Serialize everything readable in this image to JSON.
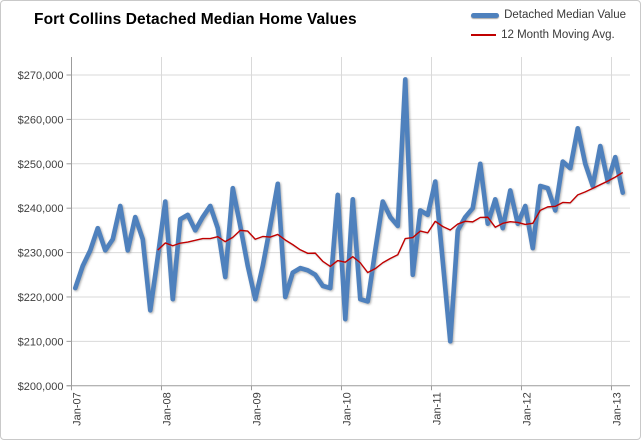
{
  "chart": {
    "title": "Fort Collins Detached Median Home Values",
    "legend": [
      {
        "label": "Detached Median Value",
        "color": "#4F81BD",
        "style": "thick-line"
      },
      {
        "label": "12 Month Moving Avg.",
        "color": "#C00000",
        "style": "thin-line"
      }
    ],
    "y_axis": {
      "ticks": [
        {
          "label": "$270,000",
          "value": 270000
        },
        {
          "label": "$260,000",
          "value": 260000
        },
        {
          "label": "$250,000",
          "value": 250000
        },
        {
          "label": "$240,000",
          "value": 240000
        },
        {
          "label": "$230,000",
          "value": 230000
        },
        {
          "label": "$220,000",
          "value": 220000
        },
        {
          "label": "$210,000",
          "value": 210000
        },
        {
          "label": "$200,000",
          "value": 200000
        }
      ]
    },
    "x_axis": {
      "tick_labels": [
        "Jan-07",
        "Jan-08",
        "Jan-09",
        "Jan-10",
        "Jan-11",
        "Jan-12",
        "Jan-13"
      ]
    },
    "colors": {
      "series_main": "#4F81BD",
      "series_avg": "#C00000",
      "gridline": "#D9D9D9",
      "axis": "#9C9C9C",
      "tick_text": "#3F3F3F"
    }
  },
  "chart_data": {
    "type": "line",
    "title": "Fort Collins Detached Median Home Values",
    "x_start": "Jan-2007",
    "x_interval": "month",
    "ylim": [
      200000,
      270000
    ],
    "grid": true,
    "legend_position": "top-right",
    "series": [
      {
        "name": "Detached Median Value",
        "color": "#4F81BD",
        "values": [
          222000,
          227000,
          230500,
          235500,
          230500,
          233000,
          240500,
          230500,
          238000,
          233000,
          217000,
          229000,
          241500,
          219500,
          237500,
          238500,
          235000,
          238000,
          240500,
          235500,
          224500,
          244500,
          236000,
          227000,
          219500,
          227000,
          236000,
          245500,
          220000,
          225500,
          226500,
          226000,
          225000,
          222500,
          222000,
          243000,
          215000,
          242000,
          219500,
          219000,
          230500,
          241500,
          238000,
          236000,
          269000,
          225000,
          239500,
          238500,
          246000,
          228000,
          210000,
          235000,
          238000,
          240000,
          250000,
          236500,
          242000,
          235500,
          244000,
          236500,
          240500,
          231000,
          245000,
          244500,
          239500,
          250500,
          249000,
          258000,
          250000,
          245000,
          254000,
          246000,
          251500,
          243500
        ]
      },
      {
        "name": "12 Month Moving Avg.",
        "color": "#C00000",
        "derived": "trailing mean of Detached Median Value",
        "window": 12
      }
    ]
  }
}
